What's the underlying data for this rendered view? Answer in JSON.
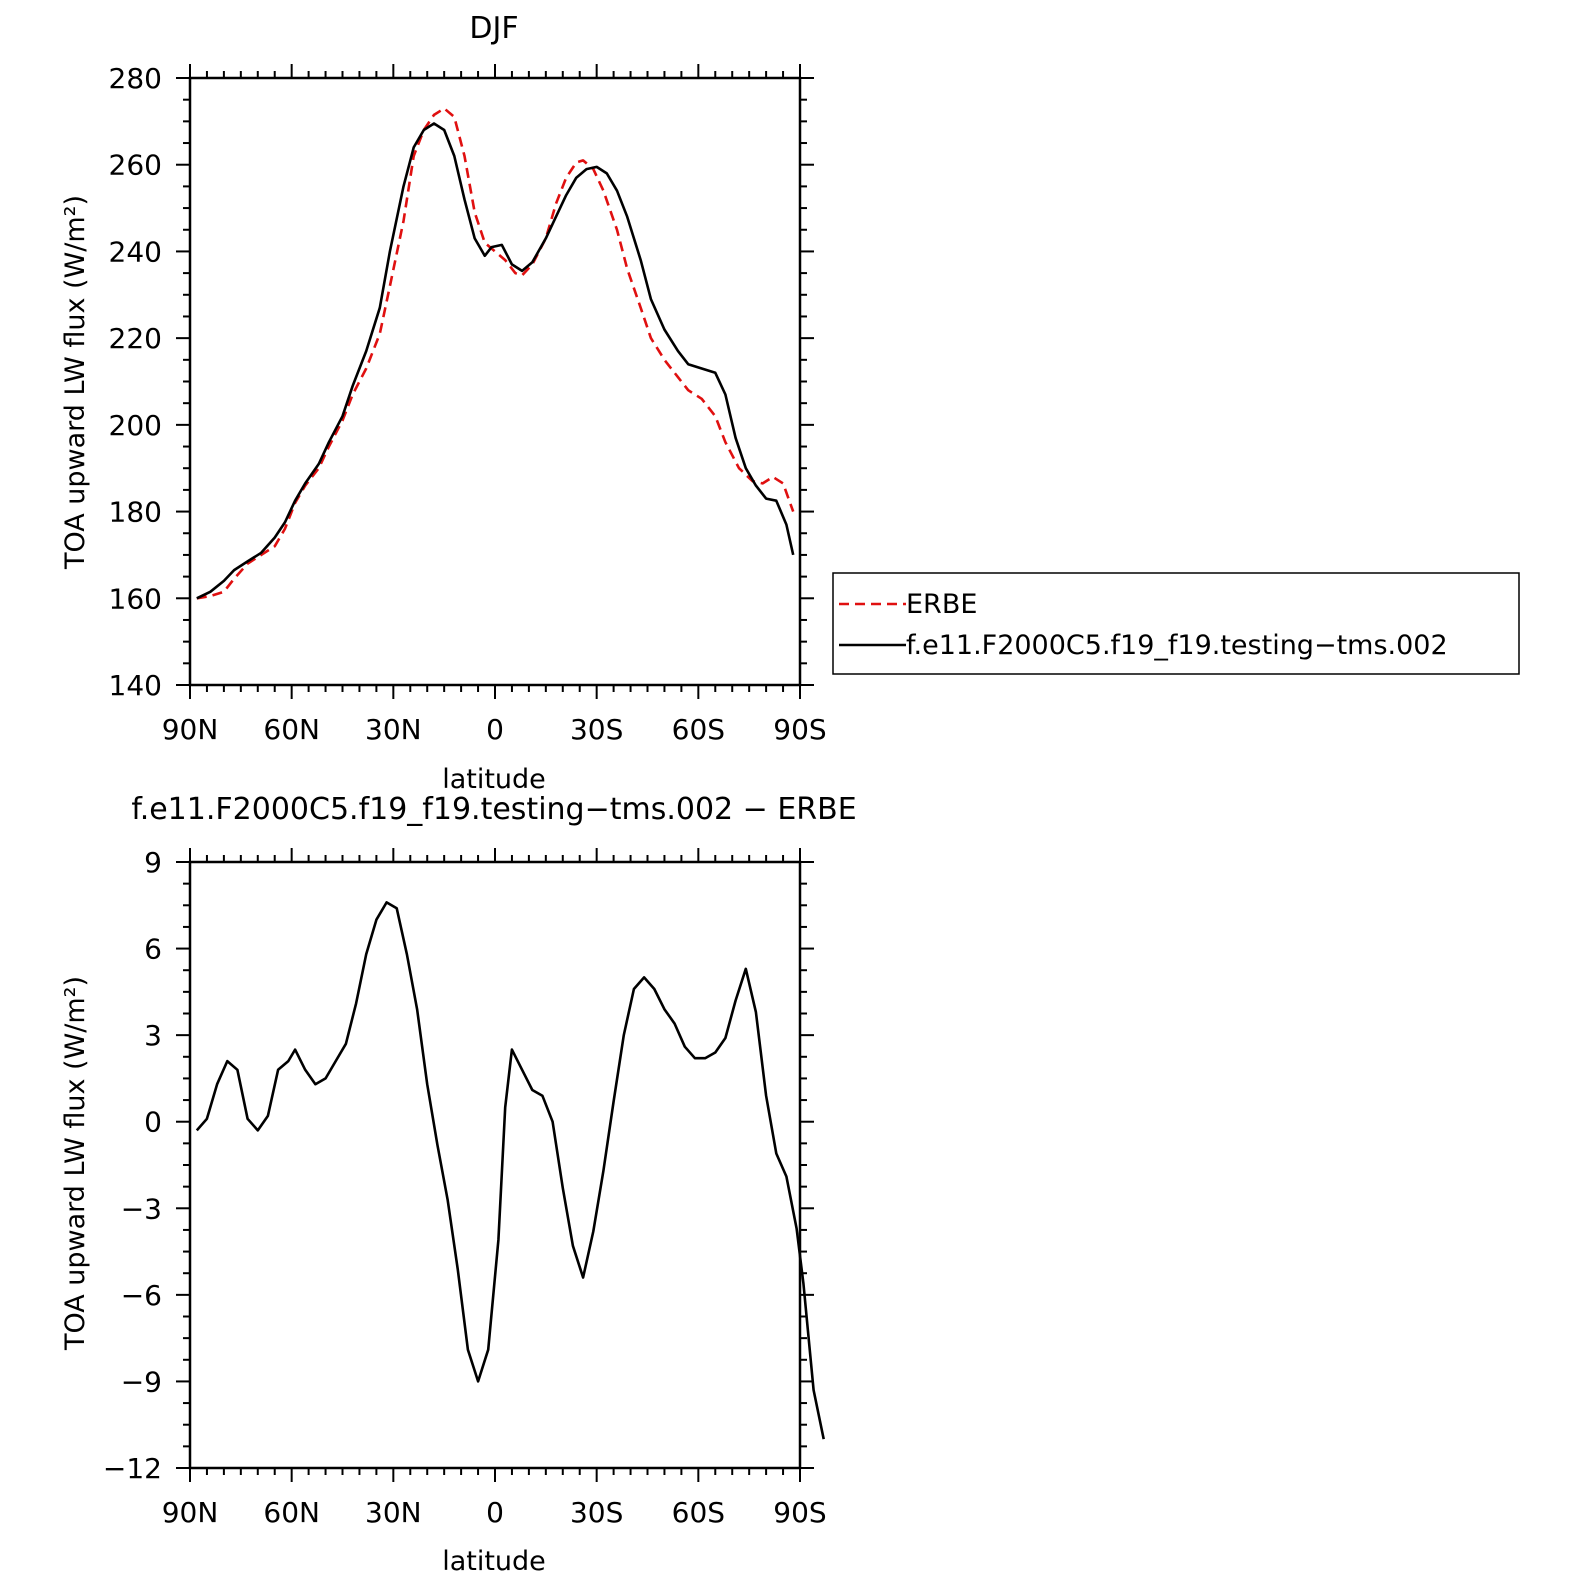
{
  "chart_data": [
    {
      "type": "line",
      "title": "DJF",
      "xlabel": "latitude",
      "ylabel": "TOA upward LW flux (W/m²)",
      "x_range": [
        -90,
        90
      ],
      "x_ticks": [
        -90,
        -60,
        -30,
        0,
        30,
        60,
        90
      ],
      "x_tick_labels": [
        "90N",
        "60N",
        "30N",
        "0",
        "30S",
        "60S",
        "90S"
      ],
      "ylim": [
        140,
        280
      ],
      "y_ticks": [
        140,
        160,
        180,
        200,
        220,
        240,
        260,
        280
      ],
      "y_tick_labels": [
        "140",
        "160",
        "180",
        "200",
        "220",
        "240",
        "260",
        "280"
      ],
      "legend": {
        "position": "right",
        "entries": [
          "ERBE",
          "f.e11.F2000C5.f19_f19.testing−tms.002"
        ]
      },
      "series": [
        {
          "name": "ERBE",
          "color": "#e01010",
          "style": "dashed",
          "points": [
            [
              -88,
              160
            ],
            [
              -84,
              160.5
            ],
            [
              -80,
              161.5
            ],
            [
              -77,
              164.5
            ],
            [
              -73,
              168
            ],
            [
              -69,
              170
            ],
            [
              -65,
              172
            ],
            [
              -62,
              176
            ],
            [
              -59,
              182
            ],
            [
              -56,
              186
            ],
            [
              -52,
              190
            ],
            [
              -49,
              195
            ],
            [
              -45,
              201
            ],
            [
              -42,
              207
            ],
            [
              -38,
              213
            ],
            [
              -34,
              221
            ],
            [
              -31,
              232
            ],
            [
              -27,
              247
            ],
            [
              -24,
              262
            ],
            [
              -21,
              268
            ],
            [
              -18,
              271.5
            ],
            [
              -15,
              273
            ],
            [
              -12,
              271
            ],
            [
              -9,
              262
            ],
            [
              -6,
              249
            ],
            [
              -3,
              242
            ],
            [
              0,
              240
            ],
            [
              3,
              238
            ],
            [
              6,
              235
            ],
            [
              8,
              234.5
            ],
            [
              11,
              237
            ],
            [
              15,
              243
            ],
            [
              18,
              251
            ],
            [
              21,
              257
            ],
            [
              24,
              260.5
            ],
            [
              26,
              261
            ],
            [
              29,
              259
            ],
            [
              32,
              254
            ],
            [
              36,
              245
            ],
            [
              39,
              236
            ],
            [
              43,
              227
            ],
            [
              46,
              220
            ],
            [
              50,
              215
            ],
            [
              54,
              211
            ],
            [
              57,
              208
            ],
            [
              61,
              206
            ],
            [
              65,
              202
            ],
            [
              68,
              196
            ],
            [
              72,
              190
            ],
            [
              76,
              187
            ],
            [
              79,
              186.5
            ],
            [
              82,
              188
            ],
            [
              85,
              186.5
            ],
            [
              88,
              180
            ]
          ]
        },
        {
          "name": "f.e11.F2000C5.f19_f19.testing−tms.002",
          "color": "#000000",
          "style": "solid",
          "points": [
            [
              -88,
              160
            ],
            [
              -84,
              161.5
            ],
            [
              -80,
              164
            ],
            [
              -77,
              166.5
            ],
            [
              -73,
              168.5
            ],
            [
              -69,
              170.5
            ],
            [
              -65,
              174
            ],
            [
              -62,
              177.5
            ],
            [
              -59,
              182.5
            ],
            [
              -56,
              186.5
            ],
            [
              -52,
              191
            ],
            [
              -49,
              196
            ],
            [
              -45,
              202
            ],
            [
              -42,
              209
            ],
            [
              -38,
              217
            ],
            [
              -34,
              227
            ],
            [
              -31,
              240
            ],
            [
              -27,
              255
            ],
            [
              -24,
              264
            ],
            [
              -21,
              268
            ],
            [
              -18,
              269.5
            ],
            [
              -15,
              268
            ],
            [
              -12,
              262
            ],
            [
              -9,
              252
            ],
            [
              -6,
              243
            ],
            [
              -3,
              239
            ],
            [
              -1,
              241
            ],
            [
              2,
              241.5
            ],
            [
              5,
              237
            ],
            [
              8,
              235.5
            ],
            [
              11,
              237.5
            ],
            [
              15,
              243
            ],
            [
              18,
              248
            ],
            [
              21,
              253
            ],
            [
              24,
              257
            ],
            [
              27,
              259
            ],
            [
              30,
              259.5
            ],
            [
              33,
              258
            ],
            [
              36,
              254
            ],
            [
              39,
              248
            ],
            [
              43,
              238
            ],
            [
              46,
              229
            ],
            [
              50,
              222
            ],
            [
              54,
              217
            ],
            [
              57,
              214
            ],
            [
              61,
              213
            ],
            [
              65,
              212
            ],
            [
              68,
              207
            ],
            [
              71,
              197
            ],
            [
              74,
              190
            ],
            [
              77,
              186
            ],
            [
              80,
              183
            ],
            [
              83,
              182.5
            ],
            [
              86,
              177
            ],
            [
              88,
              170
            ]
          ]
        }
      ]
    },
    {
      "type": "line",
      "title": "f.e11.F2000C5.f19_f19.testing−tms.002 − ERBE",
      "xlabel": "latitude",
      "ylabel": "TOA upward LW flux (W/m²)",
      "x_range": [
        -90,
        90
      ],
      "x_ticks": [
        -90,
        -60,
        -30,
        0,
        30,
        60,
        90
      ],
      "x_tick_labels": [
        "90N",
        "60N",
        "30N",
        "0",
        "30S",
        "60S",
        "90S"
      ],
      "ylim": [
        -12,
        9
      ],
      "y_ticks": [
        -12,
        -9,
        -6,
        -3,
        0,
        3,
        6,
        9
      ],
      "y_tick_labels": [
        "−12",
        "−9",
        "−6",
        "−3",
        "0",
        "3",
        "6",
        "9"
      ],
      "series": [
        {
          "color": "#000000",
          "style": "solid",
          "points": [
            [
              -88,
              -0.3
            ],
            [
              -85,
              0.1
            ],
            [
              -82,
              1.3
            ],
            [
              -79,
              2.1
            ],
            [
              -76,
              1.8
            ],
            [
              -73,
              0.1
            ],
            [
              -70,
              -0.3
            ],
            [
              -67,
              0.2
            ],
            [
              -64,
              1.8
            ],
            [
              -61,
              2.1
            ],
            [
              -59,
              2.5
            ],
            [
              -56,
              1.8
            ],
            [
              -53,
              1.3
            ],
            [
              -50,
              1.5
            ],
            [
              -47,
              2.1
            ],
            [
              -44,
              2.7
            ],
            [
              -41,
              4.1
            ],
            [
              -38,
              5.8
            ],
            [
              -35,
              7.0
            ],
            [
              -32,
              7.6
            ],
            [
              -29,
              7.4
            ],
            [
              -26,
              5.8
            ],
            [
              -23,
              3.9
            ],
            [
              -20,
              1.3
            ],
            [
              -17,
              -0.8
            ],
            [
              -14,
              -2.7
            ],
            [
              -11,
              -5.1
            ],
            [
              -8,
              -7.9
            ],
            [
              -5,
              -9.0
            ],
            [
              -2,
              -7.9
            ],
            [
              1,
              -4.1
            ],
            [
              3,
              0.5
            ],
            [
              5,
              2.5
            ],
            [
              8,
              1.8
            ],
            [
              11,
              1.1
            ],
            [
              14,
              0.9
            ],
            [
              17,
              0.0
            ],
            [
              20,
              -2.3
            ],
            [
              23,
              -4.3
            ],
            [
              26,
              -5.4
            ],
            [
              29,
              -3.8
            ],
            [
              32,
              -1.7
            ],
            [
              35,
              0.7
            ],
            [
              38,
              3.0
            ],
            [
              41,
              4.6
            ],
            [
              44,
              5.0
            ],
            [
              47,
              4.6
            ],
            [
              50,
              3.9
            ],
            [
              53,
              3.4
            ],
            [
              56,
              2.6
            ],
            [
              59,
              2.2
            ],
            [
              62,
              2.2
            ],
            [
              65,
              2.4
            ],
            [
              68,
              2.9
            ],
            [
              71,
              4.2
            ],
            [
              74,
              5.3
            ],
            [
              77,
              3.8
            ],
            [
              80,
              0.9
            ],
            [
              83,
              -1.1
            ],
            [
              86,
              -1.9
            ],
            [
              89,
              -3.7
            ],
            [
              91,
              -5.6
            ],
            [
              94,
              -9.3
            ],
            [
              97,
              -11.0
            ]
          ]
        }
      ]
    }
  ]
}
